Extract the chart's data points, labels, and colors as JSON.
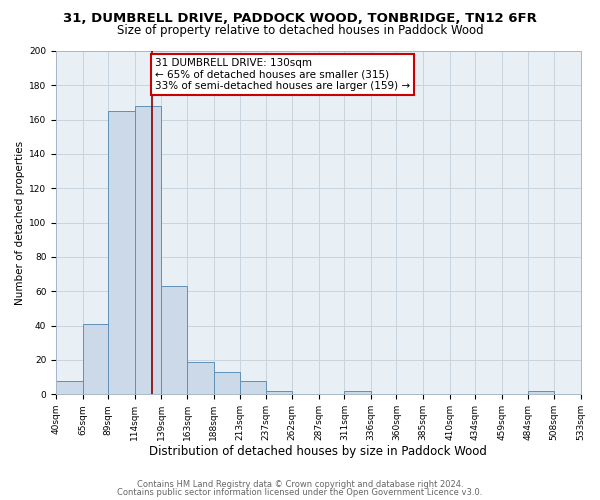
{
  "title_line1": "31, DUMBRELL DRIVE, PADDOCK WOOD, TONBRIDGE, TN12 6FR",
  "title_line2": "Size of property relative to detached houses in Paddock Wood",
  "xlabel": "Distribution of detached houses by size in Paddock Wood",
  "ylabel": "Number of detached properties",
  "bin_edges": [
    40,
    65,
    89,
    114,
    139,
    163,
    188,
    213,
    237,
    262,
    287,
    311,
    336,
    360,
    385,
    410,
    434,
    459,
    484,
    508,
    533
  ],
  "bin_heights": [
    8,
    41,
    165,
    168,
    63,
    19,
    13,
    8,
    2,
    0,
    0,
    2,
    0,
    0,
    0,
    0,
    0,
    0,
    2,
    0
  ],
  "bar_facecolor": "#ccd9e8",
  "bar_edgecolor": "#6090b8",
  "grid_color": "#c8d4de",
  "background_color": "#e8eff5",
  "vline_x": 130,
  "vline_color": "#880000",
  "annotation_title": "31 DUMBRELL DRIVE: 130sqm",
  "annotation_line1": "← 65% of detached houses are smaller (315)",
  "annotation_line2": "33% of semi-detached houses are larger (159) →",
  "annotation_box_edgecolor": "#cc0000",
  "annotation_box_facecolor": "#ffffff",
  "ylim": [
    0,
    200
  ],
  "yticks": [
    0,
    20,
    40,
    60,
    80,
    100,
    120,
    140,
    160,
    180,
    200
  ],
  "tick_labels": [
    "40sqm",
    "65sqm",
    "89sqm",
    "114sqm",
    "139sqm",
    "163sqm",
    "188sqm",
    "213sqm",
    "237sqm",
    "262sqm",
    "287sqm",
    "311sqm",
    "336sqm",
    "360sqm",
    "385sqm",
    "410sqm",
    "434sqm",
    "459sqm",
    "484sqm",
    "508sqm",
    "533sqm"
  ],
  "footer_line1": "Contains HM Land Registry data © Crown copyright and database right 2024.",
  "footer_line2": "Contains public sector information licensed under the Open Government Licence v3.0.",
  "title_fontsize": 9.5,
  "subtitle_fontsize": 8.5,
  "xlabel_fontsize": 8.5,
  "ylabel_fontsize": 7.5,
  "tick_fontsize": 6.5,
  "annotation_fontsize": 7.5,
  "footer_fontsize": 6.0
}
